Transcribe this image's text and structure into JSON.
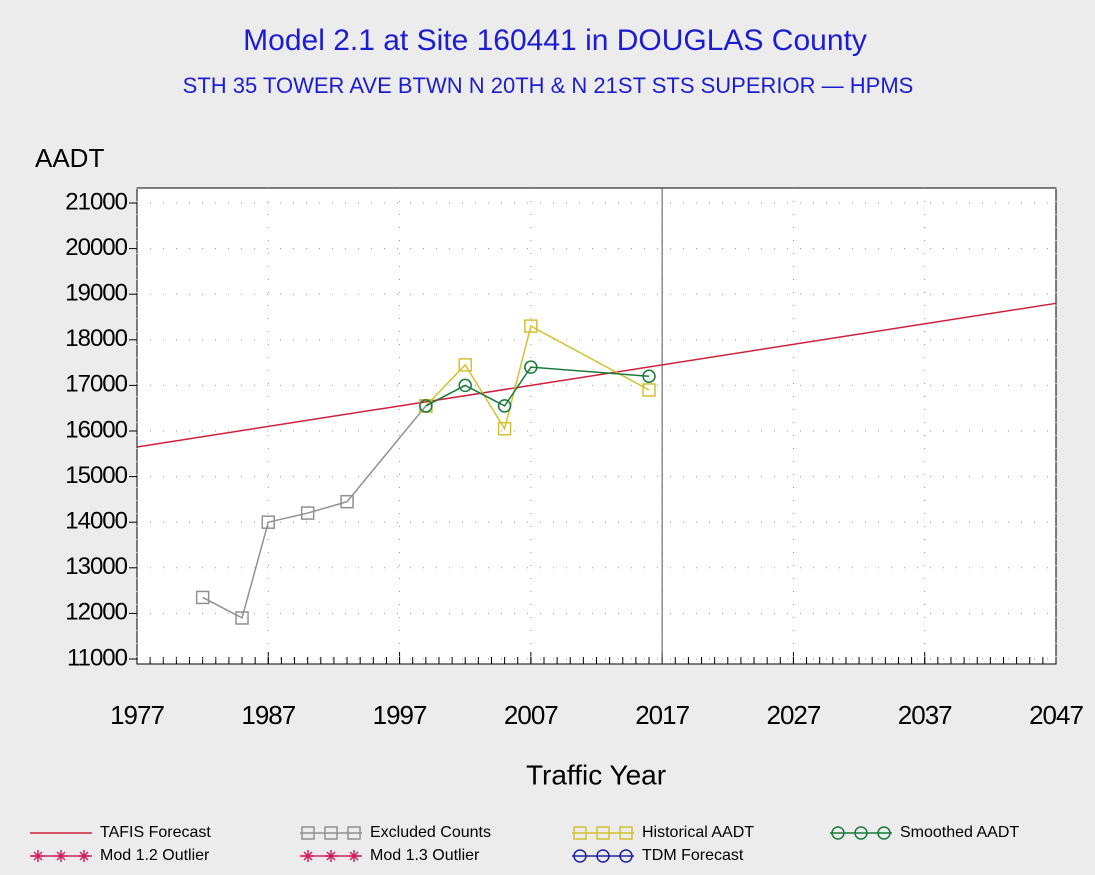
{
  "chart_data": {
    "type": "line",
    "title": "Model 2.1 at Site 160441 in DOUGLAS County",
    "subtitle": "STH 35 TOWER AVE BTWN N 20TH & N 21ST STS SUPERIOR — HPMS",
    "y_label": "AADT",
    "x_label": "Traffic Year",
    "xlim": [
      1977,
      2047
    ],
    "xticks": [
      1977,
      1987,
      1997,
      2007,
      2017,
      2027,
      2037,
      2047
    ],
    "ylim": [
      11000,
      21000
    ],
    "yticks": [
      11000,
      12000,
      13000,
      14000,
      15000,
      16000,
      17000,
      18000,
      19000,
      20000,
      21000
    ],
    "grid": true,
    "refline_x": 2017,
    "legend": "bottom",
    "series": [
      {
        "name": "TAFIS Forecast",
        "color": "#d0203a",
        "marker": "none",
        "x": [
          1977,
          2047
        ],
        "values": [
          15650,
          18800
        ]
      },
      {
        "name": "Excluded Counts",
        "color": "#909090",
        "marker": "square",
        "x": [
          1982,
          1985,
          1987,
          1990,
          1993,
          1999
        ],
        "values": [
          12350,
          11900,
          14000,
          14200,
          14450,
          16550
        ]
      },
      {
        "name": "Historical AADT",
        "color": "#d4c030",
        "marker": "square",
        "x": [
          1999,
          2002,
          2005,
          2007,
          2016
        ],
        "values": [
          16550,
          17450,
          16050,
          18300,
          16900
        ]
      },
      {
        "name": "Smoothed AADT",
        "color": "#1a7a3a",
        "marker": "circle",
        "x": [
          1999,
          2002,
          2005,
          2007,
          2016
        ],
        "values": [
          16550,
          17000,
          16550,
          17400,
          17200
        ]
      },
      {
        "name": "Mod 1.2 Outlier",
        "color": "#d02060",
        "marker": "star",
        "x": [],
        "values": []
      },
      {
        "name": "Mod 1.3 Outlier",
        "color": "#d02060",
        "marker": "star",
        "x": [],
        "values": []
      },
      {
        "name": "TDM Forecast",
        "color": "#2020a0",
        "marker": "circle",
        "x": [],
        "values": []
      }
    ]
  }
}
